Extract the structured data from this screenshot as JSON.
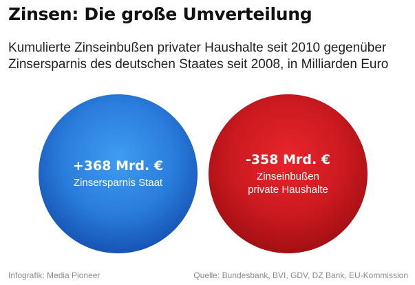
{
  "chart_data": {
    "type": "bubble",
    "title": "Zinsen: Die große Umverteilung",
    "subtitle_lines": [
      "Kumulierte Zinseinbußen privater Haushalte seit 2010 gegenüber",
      "Zinsersparnis des deutschen Staates seit 2008, in Milliarden Euro"
    ],
    "series": [
      {
        "value": 368,
        "value_label": "+368 Mrd. €",
        "label_lines": [
          "Zinsersparnis Staat"
        ],
        "color": "#2a7ddc"
      },
      {
        "value": -358,
        "value_label": "-358 Mrd. €",
        "label_lines": [
          "Zinseinbußen",
          "private Haushalte"
        ],
        "color": "#cc1a20"
      }
    ]
  },
  "footer": {
    "credit": "Infografik: Media Pioneer",
    "source": "Quelle: Bundesbank, BVI, GDV, DZ Bank, EU-Kommission"
  }
}
